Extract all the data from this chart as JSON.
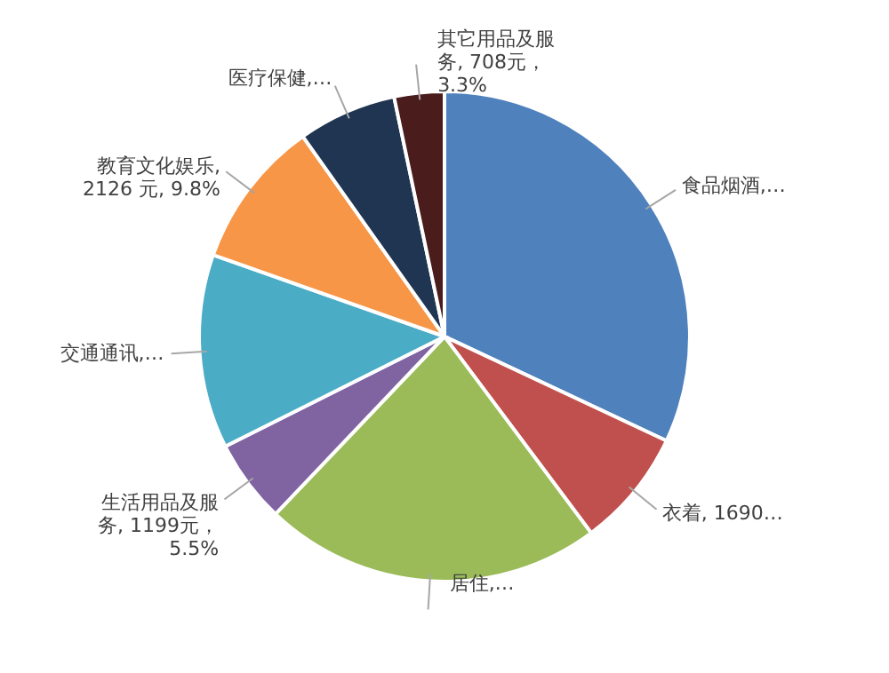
{
  "chart_data": {
    "type": "pie",
    "categories": [
      "食品烟酒,…",
      "衣着, 1690…",
      "居住,…",
      "生活用品及服务, 1199元，5.5%",
      "交通通讯,…",
      "教育文化娱乐, 2126 元, 9.8%",
      "医疗保健,…",
      "其它用品及服务, 708元，3.3%"
    ],
    "values": [
      32,
      7.8,
      22.3,
      5.5,
      12.8,
      9.8,
      6.5,
      3.3
    ],
    "colors": [
      "#4f81bd",
      "#c0504d",
      "#9bbb59",
      "#8064a2",
      "#4bacc6",
      "#f79646",
      "#1f3552",
      "#4a1c1c"
    ]
  }
}
